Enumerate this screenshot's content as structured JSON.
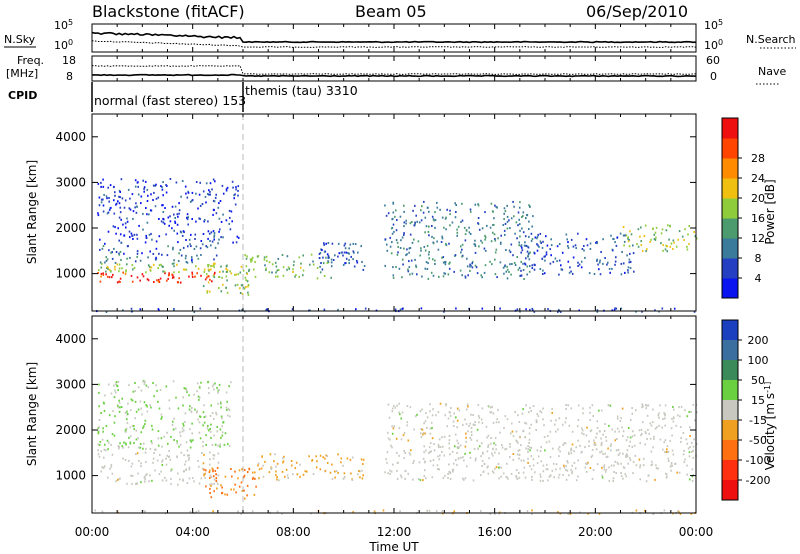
{
  "header": {
    "station": "Blackstone (fitACF)",
    "beam": "Beam 05",
    "date": "06/Sep/2010"
  },
  "strip_charts": {
    "nsky_label": "N.Sky",
    "nsky_ticks": [
      "10^5",
      "10^0"
    ],
    "nsearch_label": "N.Search",
    "nsearch_ticks": [
      "10^5",
      "10^0"
    ],
    "freq_label": "Freq.",
    "freq_unit": "[MHz]",
    "freq_ticks": [
      "18",
      "8"
    ],
    "nave_label": "Nave",
    "nave_ticks": [
      "60",
      "0"
    ],
    "cpid_label": "CPID",
    "cpid_modes": [
      {
        "name": "normal (fast stereo) 153",
        "start_hour": 0
      },
      {
        "name": "themis (tau) 3310",
        "start_hour": 6
      }
    ]
  },
  "x_axis": {
    "label": "Time UT",
    "ticks": [
      "00:00",
      "04:00",
      "08:00",
      "12:00",
      "16:00",
      "20:00",
      "00:00"
    ]
  },
  "chart_data": [
    {
      "type": "heatmap",
      "quantity": "Power",
      "xlabel": "Time UT",
      "ylabel": "Slant Range [km]",
      "x_range_hours": [
        0,
        24
      ],
      "ylim": [
        180,
        4500
      ],
      "y_ticks": [
        "1000",
        "2000",
        "3000",
        "4000"
      ],
      "colorbar": {
        "label": "Power [dB]",
        "ticks": [
          "4",
          "8",
          "12",
          "16",
          "20",
          "24",
          "28"
        ],
        "colors": [
          "#0a14ee",
          "#243fc1",
          "#3a7a9a",
          "#4c9b6e",
          "#8fcc3c",
          "#f0c010",
          "#ff8c00",
          "#ff4500",
          "#ee1010"
        ],
        "range": [
          0,
          30
        ]
      },
      "scatter_regions": [
        {
          "x": [
            0.2,
            5.0
          ],
          "y": [
            820,
            1050
          ],
          "level": 27
        },
        {
          "x": [
            0.2,
            5.0
          ],
          "y": [
            1050,
            1250
          ],
          "level": 15
        },
        {
          "x": [
            0.2,
            5.0
          ],
          "y": [
            1250,
            1700
          ],
          "level": 7
        },
        {
          "x": [
            0.2,
            5.8
          ],
          "y": [
            1700,
            3100
          ],
          "level": 4
        },
        {
          "x": [
            4.4,
            6.2
          ],
          "y": [
            550,
            1200
          ],
          "level": 14
        },
        {
          "x": [
            6.0,
            9.5
          ],
          "y": [
            900,
            1450
          ],
          "level": 13
        },
        {
          "x": [
            9.0,
            10.8
          ],
          "y": [
            1100,
            1700
          ],
          "level": 6
        },
        {
          "x": [
            11.6,
            17.5
          ],
          "y": [
            900,
            2600
          ],
          "level": 9
        },
        {
          "x": [
            17.0,
            21.5
          ],
          "y": [
            1000,
            1900
          ],
          "level": 6
        },
        {
          "x": [
            21.0,
            24.0
          ],
          "y": [
            1500,
            2100
          ],
          "level": 15
        },
        {
          "x": [
            0.0,
            24.0
          ],
          "y": [
            180,
            260
          ],
          "level": 5
        }
      ]
    },
    {
      "type": "heatmap",
      "quantity": "Velocity",
      "xlabel": "Time UT",
      "ylabel": "Slant Range [km]",
      "x_range_hours": [
        0,
        24
      ],
      "ylim": [
        180,
        4500
      ],
      "y_ticks": [
        "1000",
        "2000",
        "3000",
        "4000"
      ],
      "colorbar": {
        "label": "Velocity [m s^-1]",
        "ticks": [
          "200",
          "100",
          "50",
          "15",
          "-15",
          "-50",
          "-100",
          "-200"
        ],
        "colors": [
          "#1a3fbf",
          "#3a6fa0",
          "#3a8a5a",
          "#6ad040",
          "#c8c8c0",
          "#f0a020",
          "#ff7010",
          "#ff3010",
          "#ee1010"
        ],
        "range": [
          -250,
          250
        ]
      },
      "scatter_regions": [
        {
          "x": [
            0.2,
            5.0
          ],
          "y": [
            820,
            1600
          ],
          "velocity": 0
        },
        {
          "x": [
            0.2,
            5.5
          ],
          "y": [
            1600,
            3100
          ],
          "velocity": 30
        },
        {
          "x": [
            4.4,
            6.5
          ],
          "y": [
            500,
            1200
          ],
          "velocity": -90
        },
        {
          "x": [
            6.5,
            10.8
          ],
          "y": [
            900,
            1500
          ],
          "velocity": -40
        },
        {
          "x": [
            11.6,
            24.0
          ],
          "y": [
            900,
            2600
          ],
          "velocity": 0
        },
        {
          "x": [
            0.0,
            24.0
          ],
          "y": [
            180,
            260
          ],
          "velocity": -20
        }
      ]
    }
  ]
}
